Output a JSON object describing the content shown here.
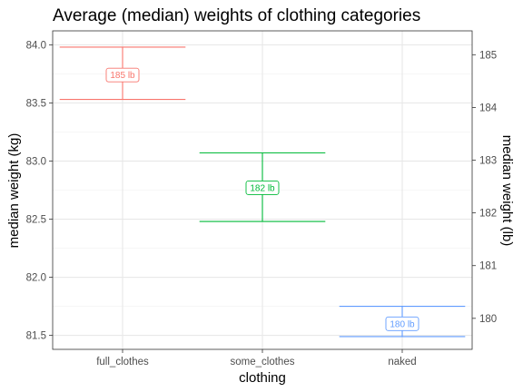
{
  "chart_data": {
    "type": "errorbar",
    "title": "Average (median) weights of clothing categories",
    "xlabel": "clothing",
    "ylabel": "median weight (kg)",
    "ylabel_right": "median weight (lb)",
    "categories": [
      "full_clothes",
      "some_clothes",
      "naked"
    ],
    "ylim": [
      81.38,
      84.12
    ],
    "yticks": [
      81.5,
      82.0,
      82.5,
      83.0,
      83.5,
      84.0
    ],
    "ytick_labels": [
      "81.5",
      "82.0",
      "82.5",
      "83.0",
      "83.5",
      "84.0"
    ],
    "y2_ticks": [
      180,
      181,
      182,
      183,
      184,
      185
    ],
    "y2_tick_labels": [
      "180",
      "181",
      "182",
      "183",
      "184",
      "185"
    ],
    "lb_per_kg": 2.20462,
    "grid": true,
    "series": [
      {
        "category": "full_clothes",
        "ymin": 83.53,
        "ymax": 83.98,
        "center": 83.74,
        "label": "185 lb",
        "color": "#F8766D"
      },
      {
        "category": "some_clothes",
        "ymin": 82.48,
        "ymax": 83.07,
        "center": 82.77,
        "label": "182 lb",
        "color": "#00BA38"
      },
      {
        "category": "naked",
        "ymin": 81.49,
        "ymax": 81.75,
        "center": 81.6,
        "label": "180 lb",
        "color": "#619CFF"
      }
    ]
  }
}
